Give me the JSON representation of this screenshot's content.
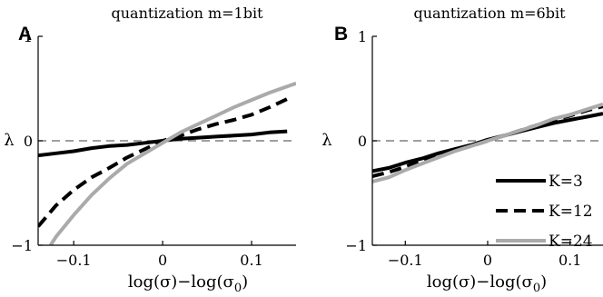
{
  "chart_data": [
    {
      "panel_label": "A",
      "type": "line",
      "title": "quantization m=1bit",
      "xlabel": "log(σ)−log(σ0)",
      "ylabel": "λ",
      "xlim": [
        -0.14,
        0.15
      ],
      "ylim": [
        -1,
        1
      ],
      "xticks": [
        -0.1,
        0,
        0.1
      ],
      "xtick_labels": [
        "−0.1",
        "0",
        "0.1"
      ],
      "yticks": [
        -1,
        0,
        1
      ],
      "ytick_labels": [
        "−1",
        "0",
        "1"
      ],
      "reference_line_y": 0,
      "grid": false,
      "series": [
        {
          "name": "K=3",
          "style": "solid",
          "color": "#000000",
          "x": [
            -0.14,
            -0.12,
            -0.1,
            -0.08,
            -0.06,
            -0.04,
            -0.02,
            0.0,
            0.02,
            0.04,
            0.06,
            0.08,
            0.1,
            0.12,
            0.14
          ],
          "y": [
            -0.14,
            -0.12,
            -0.1,
            -0.07,
            -0.05,
            -0.04,
            -0.02,
            0.0,
            0.02,
            0.03,
            0.04,
            0.05,
            0.06,
            0.08,
            0.09
          ]
        },
        {
          "name": "K=12",
          "style": "dashed",
          "color": "#000000",
          "x": [
            -0.14,
            -0.12,
            -0.1,
            -0.08,
            -0.06,
            -0.04,
            -0.02,
            0.0,
            0.02,
            0.04,
            0.06,
            0.08,
            0.1,
            0.12,
            0.14
          ],
          "y": [
            -0.82,
            -0.62,
            -0.47,
            -0.35,
            -0.26,
            -0.16,
            -0.08,
            0.0,
            0.05,
            0.11,
            0.16,
            0.2,
            0.25,
            0.32,
            0.4
          ]
        },
        {
          "name": "K=24",
          "style": "solid",
          "color": "#aaaaaa",
          "x": [
            -0.126,
            -0.12,
            -0.1,
            -0.08,
            -0.06,
            -0.04,
            -0.02,
            0.0,
            0.02,
            0.04,
            0.06,
            0.08,
            0.1,
            0.12,
            0.15
          ],
          "y": [
            -1.0,
            -0.92,
            -0.71,
            -0.52,
            -0.36,
            -0.22,
            -0.12,
            -0.02,
            0.08,
            0.16,
            0.24,
            0.32,
            0.39,
            0.46,
            0.55
          ]
        }
      ]
    },
    {
      "panel_label": "B",
      "type": "line",
      "title": "quantization m=6bit",
      "xlabel": "log(σ)−log(σ0)",
      "ylabel": "λ",
      "xlim": [
        -0.14,
        0.14
      ],
      "ylim": [
        -1,
        1
      ],
      "xticks": [
        -0.1,
        0,
        0.1
      ],
      "xtick_labels": [
        "−0.1",
        "0",
        "0.1"
      ],
      "yticks": [
        -1,
        0,
        1
      ],
      "ytick_labels": [
        "−1",
        "0",
        "1"
      ],
      "reference_line_y": 0,
      "grid": false,
      "legend": {
        "position": "lower-right",
        "entries": [
          "K=3",
          "K=12",
          "K=24"
        ]
      },
      "series": [
        {
          "name": "K=3",
          "style": "solid",
          "color": "#000000",
          "x": [
            -0.14,
            -0.12,
            -0.1,
            -0.08,
            -0.06,
            -0.04,
            -0.02,
            0.0,
            0.02,
            0.04,
            0.06,
            0.08,
            0.1,
            0.12,
            0.14
          ],
          "y": [
            -0.29,
            -0.26,
            -0.21,
            -0.17,
            -0.12,
            -0.08,
            -0.04,
            0.01,
            0.05,
            0.09,
            0.13,
            0.17,
            0.2,
            0.23,
            0.26
          ]
        },
        {
          "name": "K=12",
          "style": "dashed",
          "color": "#000000",
          "x": [
            -0.14,
            -0.12,
            -0.1,
            -0.08,
            -0.06,
            -0.04,
            -0.02,
            0.0,
            0.02,
            0.04,
            0.06,
            0.08,
            0.1,
            0.12,
            0.14
          ],
          "y": [
            -0.34,
            -0.3,
            -0.25,
            -0.19,
            -0.14,
            -0.09,
            -0.05,
            0.0,
            0.05,
            0.1,
            0.15,
            0.2,
            0.24,
            0.29,
            0.33
          ]
        },
        {
          "name": "K=24",
          "style": "solid",
          "color": "#aaaaaa",
          "x": [
            -0.14,
            -0.12,
            -0.1,
            -0.08,
            -0.06,
            -0.04,
            -0.02,
            0.0,
            0.02,
            0.04,
            0.06,
            0.08,
            0.1,
            0.12,
            0.14
          ],
          "y": [
            -0.39,
            -0.35,
            -0.28,
            -0.22,
            -0.16,
            -0.1,
            -0.05,
            0.0,
            0.05,
            0.1,
            0.15,
            0.21,
            0.25,
            0.3,
            0.35
          ]
        }
      ]
    }
  ]
}
